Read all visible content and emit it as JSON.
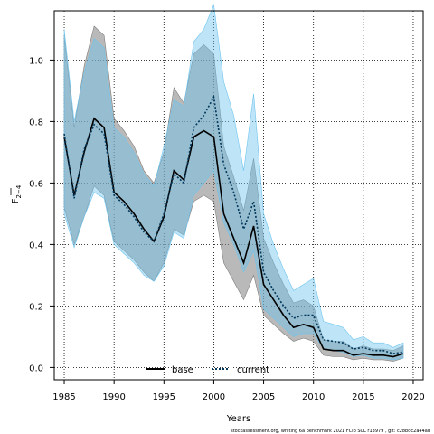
{
  "chart_data": {
    "type": "area",
    "xlabel": "Years",
    "ylabel": "F",
    "ylabel_sub": "2−4",
    "xlim": [
      1984,
      2021
    ],
    "ylim": [
      -0.04,
      1.16
    ],
    "xticks": [
      1985,
      1990,
      1995,
      2000,
      2005,
      2010,
      2015,
      2020
    ],
    "yticks": [
      0.0,
      0.2,
      0.4,
      0.6,
      0.8,
      1.0
    ],
    "ytick_labels": [
      "0.0",
      "0.2",
      "0.4",
      "0.6",
      "0.8",
      "1.0"
    ],
    "grid": true,
    "legend_position": "bottom-center",
    "footer": "stockassessment.org, whiting 6a benchmark 2021 FCIb SCL r13979 , git: c28bdc2a44ad",
    "x": [
      1985,
      1986,
      1987,
      1988,
      1989,
      1990,
      1991,
      1992,
      1993,
      1994,
      1995,
      1996,
      1997,
      1998,
      1999,
      2000,
      2001,
      2002,
      2003,
      2004,
      2005,
      2006,
      2007,
      2008,
      2009,
      2010,
      2011,
      2012,
      2013,
      2014,
      2015,
      2016,
      2017,
      2018,
      2019
    ],
    "series": [
      {
        "name": "base",
        "color": "#000000",
        "band_color": "#808080",
        "values": [
          0.75,
          0.56,
          0.7,
          0.81,
          0.78,
          0.57,
          0.54,
          0.5,
          0.45,
          0.41,
          0.49,
          0.64,
          0.61,
          0.75,
          0.77,
          0.75,
          0.5,
          0.42,
          0.34,
          0.46,
          0.27,
          0.22,
          0.17,
          0.13,
          0.14,
          0.13,
          0.06,
          0.055,
          0.055,
          0.04,
          0.045,
          0.04,
          0.04,
          0.035,
          0.045
        ],
        "lower": [
          0.52,
          0.4,
          0.49,
          0.59,
          0.56,
          0.41,
          0.38,
          0.35,
          0.31,
          0.28,
          0.34,
          0.45,
          0.43,
          0.54,
          0.56,
          0.54,
          0.34,
          0.28,
          0.22,
          0.3,
          0.17,
          0.14,
          0.11,
          0.085,
          0.095,
          0.085,
          0.04,
          0.035,
          0.035,
          0.025,
          0.03,
          0.025,
          0.025,
          0.02,
          0.03
        ],
        "upper": [
          1.08,
          0.78,
          0.98,
          1.11,
          1.08,
          0.81,
          0.77,
          0.72,
          0.64,
          0.6,
          0.7,
          0.91,
          0.86,
          1.02,
          1.05,
          1.02,
          0.72,
          0.62,
          0.51,
          0.68,
          0.42,
          0.34,
          0.27,
          0.21,
          0.22,
          0.2,
          0.09,
          0.085,
          0.085,
          0.06,
          0.07,
          0.06,
          0.06,
          0.055,
          0.07
        ]
      },
      {
        "name": "current",
        "color": "#00375a",
        "band_color": "#6ec4ee",
        "values": [
          0.76,
          0.55,
          0.71,
          0.79,
          0.76,
          0.56,
          0.53,
          0.49,
          0.44,
          0.41,
          0.5,
          0.63,
          0.6,
          0.78,
          0.82,
          0.88,
          0.66,
          0.57,
          0.45,
          0.54,
          0.31,
          0.25,
          0.2,
          0.16,
          0.17,
          0.17,
          0.09,
          0.085,
          0.08,
          0.06,
          0.065,
          0.055,
          0.055,
          0.045,
          0.05
        ],
        "lower": [
          0.5,
          0.39,
          0.49,
          0.57,
          0.55,
          0.4,
          0.37,
          0.34,
          0.3,
          0.28,
          0.33,
          0.44,
          0.42,
          0.56,
          0.6,
          0.64,
          0.47,
          0.4,
          0.31,
          0.38,
          0.19,
          0.16,
          0.13,
          0.1,
          0.11,
          0.11,
          0.06,
          0.055,
          0.05,
          0.035,
          0.04,
          0.03,
          0.03,
          0.025,
          0.03
        ],
        "upper": [
          1.1,
          0.8,
          0.96,
          1.07,
          1.04,
          0.78,
          0.75,
          0.7,
          0.63,
          0.59,
          0.72,
          0.87,
          0.85,
          1.06,
          1.1,
          1.18,
          0.93,
          0.82,
          0.64,
          0.89,
          0.5,
          0.4,
          0.32,
          0.25,
          0.27,
          0.29,
          0.15,
          0.14,
          0.13,
          0.09,
          0.1,
          0.08,
          0.08,
          0.065,
          0.08
        ]
      }
    ]
  }
}
